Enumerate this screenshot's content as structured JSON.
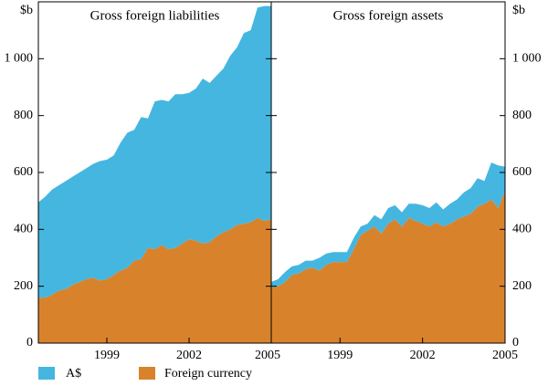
{
  "chart_data": [
    {
      "type": "area",
      "stacked": true,
      "title": "Gross foreign liabilities",
      "y_label": "$b",
      "y_axis_side": "left",
      "x": [
        1996.5,
        1996.75,
        1997,
        1997.25,
        1997.5,
        1997.75,
        1998,
        1998.25,
        1998.5,
        1998.75,
        1999,
        1999.25,
        1999.5,
        1999.75,
        2000,
        2000.25,
        2000.5,
        2000.75,
        2001,
        2001.25,
        2001.5,
        2001.75,
        2002,
        2002.25,
        2002.5,
        2002.75,
        2003,
        2003.25,
        2003.5,
        2003.75,
        2004,
        2004.25,
        2004.5,
        2004.75,
        2005
      ],
      "series": [
        {
          "name": "A$",
          "color": "#45b6e0",
          "values": [
            335,
            355,
            370,
            370,
            380,
            380,
            385,
            390,
            400,
            420,
            420,
            420,
            450,
            475,
            460,
            500,
            455,
            520,
            510,
            520,
            540,
            525,
            515,
            535,
            580,
            560,
            565,
            575,
            610,
            625,
            670,
            675,
            740,
            755,
            750
          ]
        },
        {
          "name": "Foreign currency",
          "color": "#d8832c",
          "values": [
            160,
            160,
            170,
            185,
            190,
            205,
            215,
            225,
            230,
            220,
            225,
            240,
            255,
            265,
            290,
            295,
            335,
            330,
            345,
            330,
            335,
            350,
            365,
            360,
            350,
            355,
            375,
            390,
            400,
            415,
            420,
            425,
            440,
            430,
            435
          ]
        }
      ],
      "xlim": [
        1996.5,
        2005
      ],
      "xticks": [
        1999,
        2002,
        2005
      ],
      "ylim": [
        0,
        1200
      ],
      "yticks": [
        0,
        200,
        400,
        600,
        800,
        {
          "value": 1000,
          "label": "1 000"
        }
      ]
    },
    {
      "type": "area",
      "stacked": true,
      "title": "Gross foreign assets",
      "y_label": "$b",
      "y_axis_side": "right",
      "x": [
        1996.5,
        1996.75,
        1997,
        1997.25,
        1997.5,
        1997.75,
        1998,
        1998.25,
        1998.5,
        1998.75,
        1999,
        1999.25,
        1999.5,
        1999.75,
        2000,
        2000.25,
        2000.5,
        2000.75,
        2001,
        2001.25,
        2001.5,
        2001.75,
        2002,
        2002.25,
        2002.5,
        2002.75,
        2003,
        2003.25,
        2003.5,
        2003.75,
        2004,
        2004.25,
        2004.5,
        2004.75,
        2005
      ],
      "series": [
        {
          "name": "A$",
          "color": "#45b6e0",
          "values": [
            20,
            25,
            35,
            30,
            30,
            30,
            25,
            45,
            40,
            35,
            35,
            35,
            40,
            30,
            25,
            40,
            50,
            55,
            50,
            50,
            50,
            60,
            65,
            65,
            70,
            60,
            70,
            70,
            85,
            90,
            100,
            80,
            130,
            150,
            85
          ]
        },
        {
          "name": "Foreign currency",
          "color": "#d8832c",
          "values": [
            195,
            200,
            215,
            240,
            245,
            260,
            265,
            255,
            275,
            285,
            285,
            285,
            330,
            380,
            395,
            410,
            385,
            420,
            435,
            410,
            440,
            430,
            420,
            410,
            425,
            410,
            420,
            435,
            445,
            455,
            480,
            490,
            505,
            475,
            535
          ]
        }
      ],
      "xlim": [
        1996.5,
        2005
      ],
      "xticks": [
        1999,
        2002,
        2005
      ],
      "ylim": [
        0,
        1200
      ],
      "yticks": [
        0,
        200,
        400,
        600,
        800,
        {
          "value": 1000,
          "label": "1 000"
        }
      ]
    }
  ]
}
